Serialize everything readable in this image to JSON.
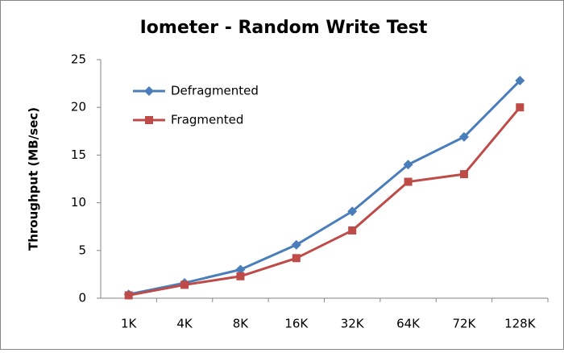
{
  "chart_data": {
    "type": "line",
    "title": "Iometer - Random Write Test",
    "y_label": "Throughput (MB/sec)",
    "categories": [
      "1K",
      "4K",
      "8K",
      "16K",
      "32K",
      "64K",
      "72K",
      "128K"
    ],
    "series": [
      {
        "name": "Defragmented",
        "color": "#4a7ebb",
        "marker": "diamond",
        "values": [
          0.4,
          1.6,
          3.0,
          5.6,
          9.1,
          14.0,
          16.9,
          22.8
        ]
      },
      {
        "name": "Fragmented",
        "color": "#be4b48",
        "marker": "square",
        "values": [
          0.3,
          1.4,
          2.3,
          4.2,
          7.1,
          12.2,
          13.0,
          20.0
        ]
      }
    ],
    "ylim": [
      0,
      25
    ],
    "yticks": [
      0,
      5,
      10,
      15,
      20,
      25
    ],
    "grid": false,
    "legend": "top-left"
  }
}
